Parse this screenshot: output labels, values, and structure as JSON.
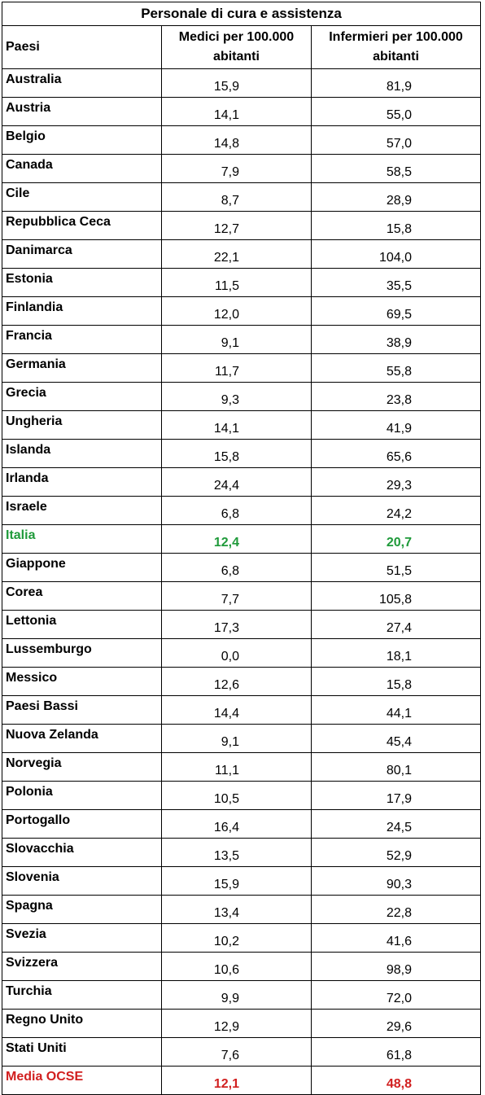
{
  "table": {
    "title": "Personale di cura e assistenza",
    "headers": {
      "country": "Paesi",
      "doctors": "Medici per 100.000 abitanti",
      "nurses": "Infermieri per 100.000 abitanti"
    },
    "highlight_colors": {
      "italia": "#1f9a3a",
      "media_ocse": "#d11f1f"
    },
    "rows": [
      {
        "country": "Australia",
        "doctors": "15,9",
        "nurses": "81,9"
      },
      {
        "country": "Austria",
        "doctors": "14,1",
        "nurses": "55,0"
      },
      {
        "country": "Belgio",
        "doctors": "14,8",
        "nurses": "57,0"
      },
      {
        "country": "Canada",
        "doctors": "7,9",
        "nurses": "58,5"
      },
      {
        "country": "Cile",
        "doctors": "8,7",
        "nurses": "28,9"
      },
      {
        "country": "Repubblica Ceca",
        "doctors": "12,7",
        "nurses": "15,8"
      },
      {
        "country": "Danimarca",
        "doctors": "22,1",
        "nurses": "104,0"
      },
      {
        "country": "Estonia",
        "doctors": "11,5",
        "nurses": "35,5"
      },
      {
        "country": "Finlandia",
        "doctors": "12,0",
        "nurses": "69,5"
      },
      {
        "country": "Francia",
        "doctors": "9,1",
        "nurses": "38,9"
      },
      {
        "country": "Germania",
        "doctors": "11,7",
        "nurses": "55,8"
      },
      {
        "country": "Grecia",
        "doctors": "9,3",
        "nurses": "23,8"
      },
      {
        "country": "Ungheria",
        "doctors": "14,1",
        "nurses": "41,9"
      },
      {
        "country": "Islanda",
        "doctors": "15,8",
        "nurses": "65,6"
      },
      {
        "country": "Irlanda",
        "doctors": "24,4",
        "nurses": "29,3"
      },
      {
        "country": "Israele",
        "doctors": "6,8",
        "nurses": "24,2"
      },
      {
        "country": "Italia",
        "doctors": "12,4",
        "nurses": "20,7",
        "highlight": "italia"
      },
      {
        "country": "Giappone",
        "doctors": "6,8",
        "nurses": "51,5"
      },
      {
        "country": "Corea",
        "doctors": "7,7",
        "nurses": "105,8"
      },
      {
        "country": "Lettonia",
        "doctors": "17,3",
        "nurses": "27,4"
      },
      {
        "country": "Lussemburgo",
        "doctors": "0,0",
        "nurses": "18,1"
      },
      {
        "country": "Messico",
        "doctors": "12,6",
        "nurses": "15,8"
      },
      {
        "country": "Paesi Bassi",
        "doctors": "14,4",
        "nurses": "44,1"
      },
      {
        "country": "Nuova Zelanda",
        "doctors": "9,1",
        "nurses": "45,4"
      },
      {
        "country": "Norvegia",
        "doctors": "11,1",
        "nurses": "80,1"
      },
      {
        "country": "Polonia",
        "doctors": "10,5",
        "nurses": "17,9"
      },
      {
        "country": "Portogallo",
        "doctors": "16,4",
        "nurses": "24,5"
      },
      {
        "country": "Slovacchia",
        "doctors": "13,5",
        "nurses": "52,9"
      },
      {
        "country": "Slovenia",
        "doctors": "15,9",
        "nurses": "90,3"
      },
      {
        "country": "Spagna",
        "doctors": "13,4",
        "nurses": "22,8"
      },
      {
        "country": "Svezia",
        "doctors": "10,2",
        "nurses": "41,6"
      },
      {
        "country": "Svizzera",
        "doctors": "10,6",
        "nurses": "98,9"
      },
      {
        "country": "Turchia",
        "doctors": "9,9",
        "nurses": "72,0"
      },
      {
        "country": "Regno Unito",
        "doctors": "12,9",
        "nurses": "29,6"
      },
      {
        "country": "Stati Uniti",
        "doctors": "7,6",
        "nurses": "61,8"
      },
      {
        "country": "Media OCSE",
        "doctors": "12,1",
        "nurses": "48,8",
        "highlight": "ocse"
      }
    ]
  }
}
